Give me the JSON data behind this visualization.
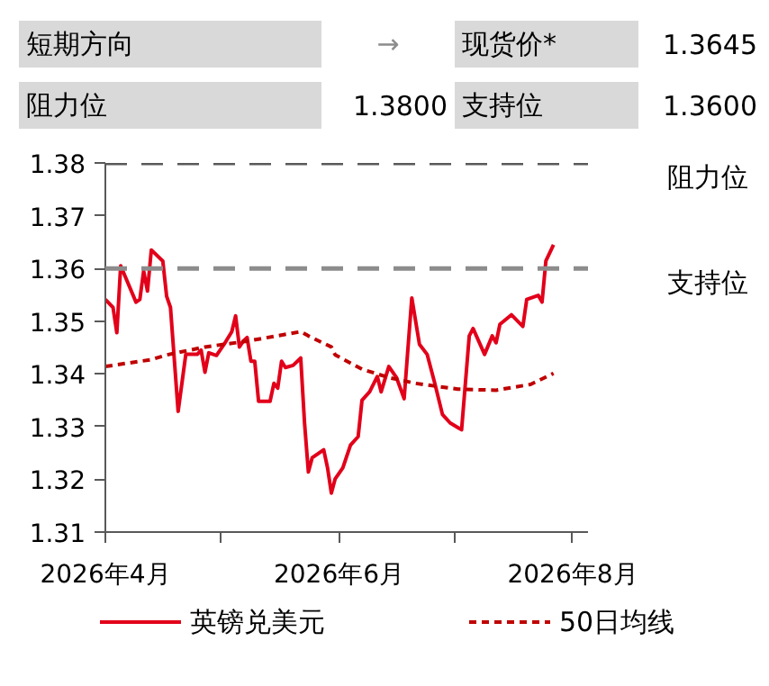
{
  "chart_data": {
    "type": "line",
    "annotations": [
      "短期方向",
      "→",
      "现货价*",
      "1.3645",
      "阻力位",
      "1.3800",
      "支持位",
      "1.3600"
    ],
    "series": [
      {
        "name": "英镑兑美元",
        "color": "#e2001a",
        "line_style": "solid",
        "x": [
          "2026-04-01",
          "2026-04-03",
          "2026-04-04",
          "2026-04-05",
          "2026-04-09",
          "2026-04-10",
          "2026-04-11",
          "2026-04-12",
          "2026-04-13",
          "2026-04-16",
          "2026-04-17",
          "2026-04-18",
          "2026-04-20",
          "2026-04-22",
          "2026-04-25",
          "2026-04-26",
          "2026-04-27",
          "2026-04-28",
          "2026-04-30",
          "2026-05-02",
          "2026-05-04",
          "2026-05-05",
          "2026-05-06",
          "2026-05-07",
          "2026-05-08",
          "2026-05-09",
          "2026-05-10",
          "2026-05-11",
          "2026-05-14",
          "2026-05-15",
          "2026-05-16",
          "2026-05-17",
          "2026-05-18",
          "2026-05-20",
          "2026-05-22",
          "2026-05-23",
          "2026-05-24",
          "2026-05-25",
          "2026-05-28",
          "2026-05-29",
          "2026-05-30",
          "2026-05-31",
          "2026-06-02",
          "2026-06-04",
          "2026-06-06",
          "2026-06-07",
          "2026-06-09",
          "2026-06-11",
          "2026-06-12",
          "2026-06-14",
          "2026-06-16",
          "2026-06-18",
          "2026-06-20",
          "2026-06-22",
          "2026-06-24",
          "2026-06-26",
          "2026-06-28",
          "2026-06-30",
          "2026-07-03",
          "2026-07-05",
          "2026-07-06",
          "2026-07-09",
          "2026-07-11",
          "2026-07-12",
          "2026-07-13",
          "2026-07-16",
          "2026-07-19",
          "2026-07-20",
          "2026-07-23",
          "2026-07-24",
          "2026-07-25",
          "2026-07-27"
        ],
        "values": [
          1.3541,
          1.3526,
          1.3478,
          1.3605,
          1.3536,
          1.3541,
          1.3595,
          1.3557,
          1.3635,
          1.3614,
          1.3547,
          1.3526,
          1.3329,
          1.3437,
          1.3437,
          1.3445,
          1.3403,
          1.344,
          1.3435,
          1.3456,
          1.348,
          1.351,
          1.3451,
          1.3462,
          1.3469,
          1.3424,
          1.3424,
          1.3348,
          1.3348,
          1.3382,
          1.3373,
          1.3424,
          1.3412,
          1.3416,
          1.343,
          1.3307,
          1.3214,
          1.3241,
          1.3256,
          1.3222,
          1.3174,
          1.3201,
          1.3222,
          1.3265,
          1.3281,
          1.335,
          1.3366,
          1.3395,
          1.3366,
          1.3414,
          1.3393,
          1.3353,
          1.3544,
          1.3456,
          1.3437,
          1.3382,
          1.3323,
          1.3307,
          1.3294,
          1.3472,
          1.3486,
          1.3437,
          1.3472,
          1.3459,
          1.3494,
          1.3512,
          1.349,
          1.3541,
          1.3549,
          1.3536,
          1.3614,
          1.3645
        ]
      },
      {
        "name": "50日均线",
        "color": "#c00000",
        "line_style": "dashed",
        "x": [
          "2026-04-01",
          "2026-04-13",
          "2026-04-17",
          "2026-04-27",
          "2026-05-08",
          "2026-05-22",
          "2026-05-24",
          "2026-05-30",
          "2026-05-31",
          "2026-06-07",
          "2026-06-14",
          "2026-06-21",
          "2026-07-02",
          "2026-07-12",
          "2026-07-21",
          "2026-07-27"
        ],
        "values": [
          1.3414,
          1.3427,
          1.3436,
          1.3451,
          1.3462,
          1.348,
          1.3472,
          1.3451,
          1.3436,
          1.3409,
          1.3393,
          1.3382,
          1.3371,
          1.3369,
          1.338,
          1.3401
        ]
      }
    ],
    "ref_lines": [
      {
        "axis": "y",
        "value": 1.38,
        "label": "阻力位",
        "color": "#595959",
        "line_style": "dashed"
      },
      {
        "axis": "y",
        "value": 1.36,
        "label": "支持位",
        "color": "#8c8c8c",
        "line_style": "dashed"
      }
    ],
    "xlim": [
      "2026-04-01",
      "2026-08-05"
    ],
    "xticks": [
      {
        "value": "2026-04-01",
        "label": "2026年4月"
      },
      {
        "value": "2026-05-01",
        "label": null
      },
      {
        "value": "2026-06-01",
        "label": "2026年6月"
      },
      {
        "value": "2026-07-01",
        "label": null
      },
      {
        "value": "2026-08-01",
        "label": "2026年8月"
      }
    ],
    "ylim": [
      1.31,
      1.38
    ],
    "yticks": [
      1.31,
      1.32,
      1.33,
      1.34,
      1.35,
      1.36,
      1.37,
      1.38
    ],
    "legend": "bottom"
  }
}
